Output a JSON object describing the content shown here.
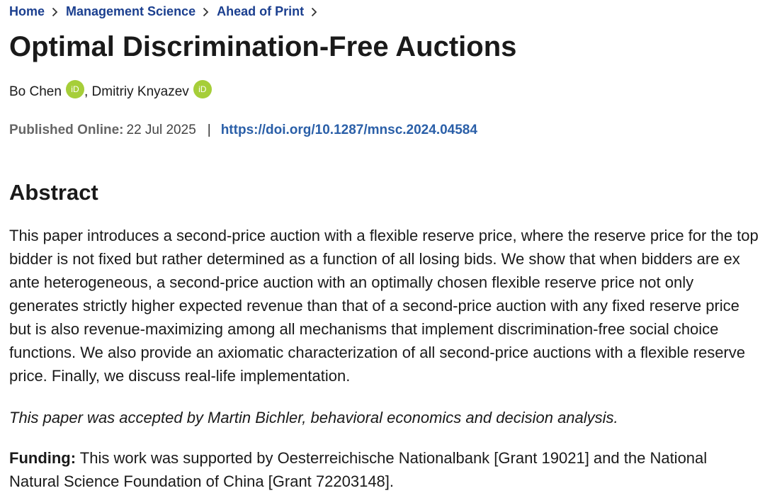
{
  "breadcrumb": {
    "items": [
      "Home",
      "Management Science",
      "Ahead of Print"
    ]
  },
  "article": {
    "title": "Optimal Discrimination-Free Auctions",
    "authors": [
      {
        "name": "Bo Chen",
        "orcid_badge": "iD"
      },
      {
        "name": "Dmitriy Knyazev",
        "orcid_badge": "iD"
      }
    ],
    "author_separator": ",",
    "published_label": "Published Online:",
    "published_date": "22 Jul 2025",
    "divider": "|",
    "doi": "https://doi.org/10.1287/mnsc.2024.04584"
  },
  "abstract": {
    "heading": "Abstract",
    "text": "This paper introduces a second-price auction with a flexible reserve price, where the reserve price for the top bidder is not fixed but rather determined as a function of all losing bids. We show that when bidders are ex ante heterogeneous, a second-price auction with an optimally chosen flexible reserve price not only generates strictly higher expected revenue than that of a second-price auction with any fixed reserve price but is also revenue-maximizing among all mechanisms that implement discrimination-free social choice functions. We also provide an axiomatic characterization of all second-price auctions with a flexible reserve price. Finally, we discuss real-life implementation.",
    "accepted_note": "This paper was accepted by Martin Bichler, behavioral economics and decision analysis.",
    "funding_label": "Funding:",
    "funding_text": " This work was supported by Oesterreichische Nationalbank [Grant 19021] and the National Natural Science Foundation of China [Grant 72203148]."
  },
  "colors": {
    "link": "#1b3f8f",
    "doi": "#2a5fa8",
    "orcid": "#a6ce39"
  },
  "icons": [
    "chevron-right-icon",
    "orcid-icon"
  ]
}
